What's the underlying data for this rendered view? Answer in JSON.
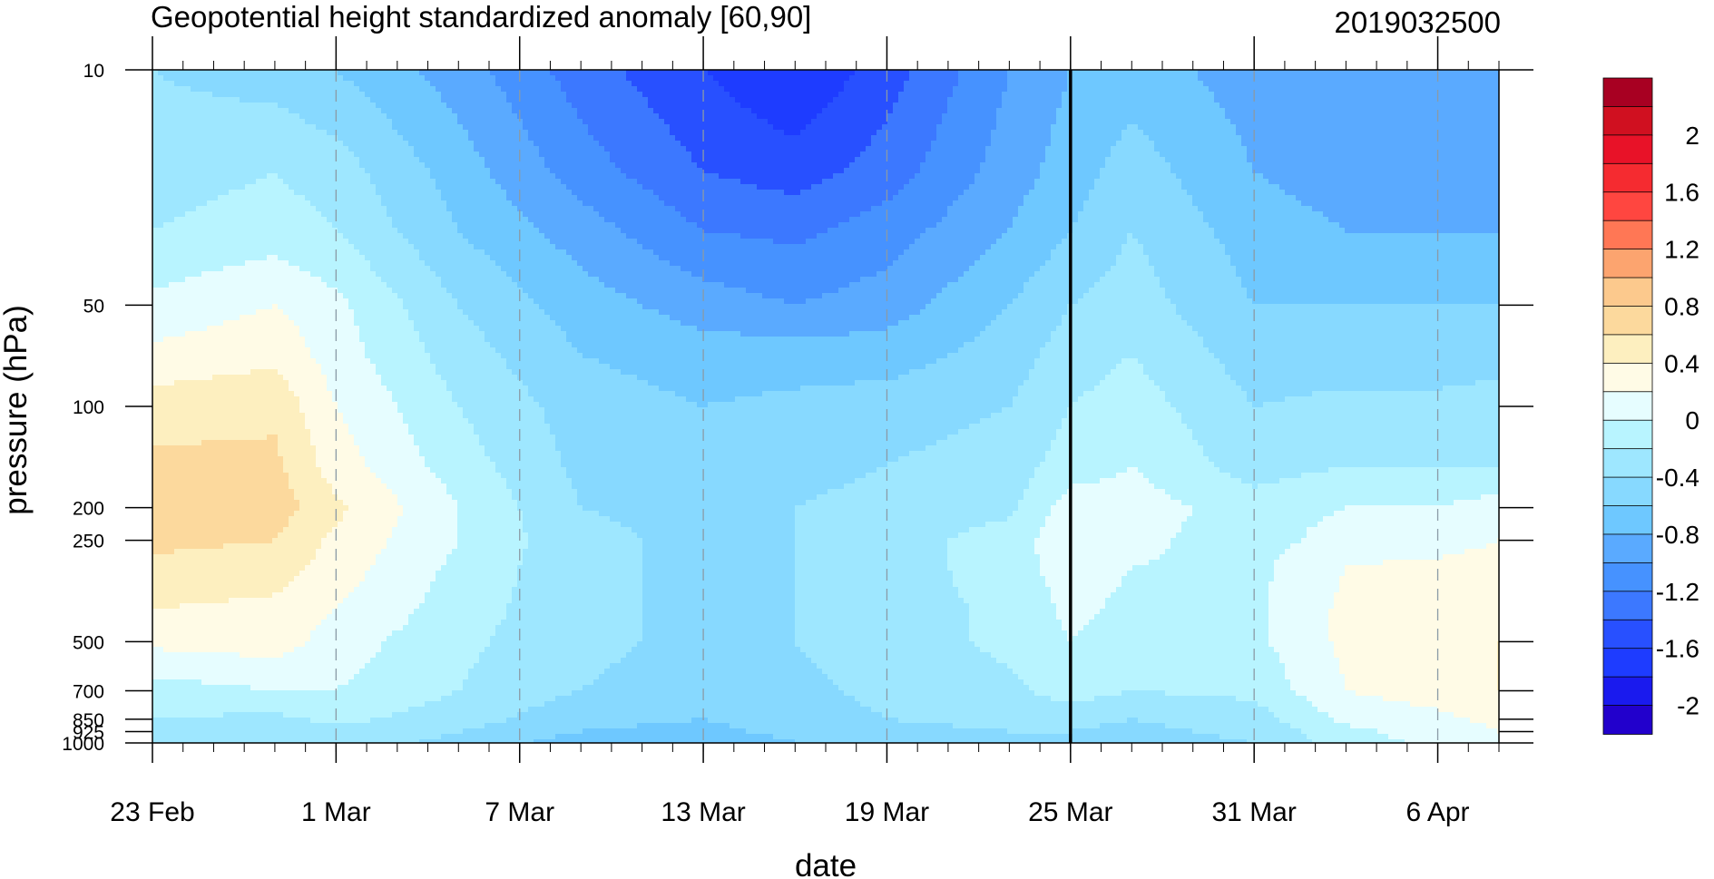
{
  "chart_data": {
    "type": "heatmap",
    "title": "Geopotential height standardized anomaly [60,90]",
    "right_title": "2019032500",
    "xlabel": "date",
    "ylabel": "pressure (hPa)",
    "x_ticks": [
      "23 Feb",
      "1 Mar",
      "7 Mar",
      "13 Mar",
      "19 Mar",
      "25 Mar",
      "31 Mar",
      "6 Apr"
    ],
    "x_range": [
      "2019-02-23",
      "2019-04-08"
    ],
    "current_date": "2019-03-25",
    "y_scale": "log",
    "y_ticks": [
      "10",
      "50",
      "100",
      "200",
      "250",
      "500",
      "700",
      "850",
      "925",
      "1000"
    ],
    "y_range": [
      1000,
      10
    ],
    "colorbar": {
      "levels": [
        -2.2,
        -2.0,
        -1.8,
        -1.6,
        -1.4,
        -1.2,
        -1.0,
        -0.8,
        -0.6,
        -0.4,
        -0.2,
        0,
        0.2,
        0.4,
        0.6,
        0.8,
        1.0,
        1.2,
        1.4,
        1.6,
        1.8,
        2.0,
        2.2
      ],
      "labels": [
        "2",
        "1.6",
        "1.2",
        "0.8",
        "0.4",
        "0",
        "-0.4",
        "-0.8",
        "-1.2",
        "-1.6",
        "-2"
      ],
      "colors": [
        "#2200cc",
        "#1a1aee",
        "#1e3cff",
        "#2850ff",
        "#3c78ff",
        "#4692ff",
        "#5aaaff",
        "#6ec8ff",
        "#87d9ff",
        "#9ee7ff",
        "#b8f4ff",
        "#e6fdff",
        "#fffbe6",
        "#fdefbf",
        "#fcd99d",
        "#fcc98d",
        "#fca46f",
        "#ff7755",
        "#ff4640",
        "#f52b30",
        "#e81228",
        "#d01020",
        "#a80022"
      ]
    },
    "anomaly_levels": [
      -1.8,
      -1.4,
      -1.0,
      -0.6,
      -0.2,
      0.2,
      0.6
    ],
    "anomaly_table": {
      "pressure_hPa": [
        10,
        20,
        30,
        50,
        70,
        100,
        150,
        200,
        250,
        300,
        400,
        500,
        700,
        850,
        925,
        1000
      ],
      "dates": [
        "2019-02-23",
        "2019-02-27",
        "2019-03-01",
        "2019-03-05",
        "2019-03-09",
        "2019-03-13",
        "2019-03-16",
        "2019-03-19",
        "2019-03-23",
        "2019-03-25",
        "2019-03-27",
        "2019-03-31",
        "2019-04-03",
        "2019-04-06",
        "2019-04-08"
      ],
      "values": [
        [
          -0.4,
          -0.5,
          -0.6,
          -0.9,
          -1.3,
          -1.6,
          -1.8,
          -1.5,
          -1.0,
          -0.8,
          -0.7,
          -0.9,
          -1.0,
          -1.0,
          -1.0
        ],
        [
          -0.3,
          -0.2,
          -0.3,
          -0.7,
          -1.1,
          -1.4,
          -1.5,
          -1.3,
          -0.9,
          -0.7,
          -0.5,
          -0.8,
          -0.9,
          -0.9,
          -0.9
        ],
        [
          -0.2,
          -0.1,
          -0.2,
          -0.6,
          -0.9,
          -1.2,
          -1.25,
          -1.1,
          -0.8,
          -0.6,
          -0.4,
          -0.7,
          -0.8,
          -0.8,
          -0.8
        ],
        [
          0.05,
          0.2,
          0.05,
          -0.4,
          -0.7,
          -0.9,
          -1.0,
          -0.9,
          -0.6,
          -0.4,
          -0.3,
          -0.6,
          -0.6,
          -0.6,
          -0.6
        ],
        [
          0.25,
          0.35,
          0.1,
          -0.3,
          -0.6,
          -0.7,
          -0.7,
          -0.7,
          -0.5,
          -0.3,
          -0.2,
          -0.5,
          -0.5,
          -0.5,
          -0.5
        ],
        [
          0.5,
          0.55,
          0.2,
          -0.2,
          -0.5,
          -0.6,
          -0.55,
          -0.5,
          -0.4,
          -0.2,
          -0.1,
          -0.4,
          -0.35,
          -0.35,
          -0.3
        ],
        [
          0.65,
          0.65,
          0.3,
          -0.1,
          -0.45,
          -0.5,
          -0.45,
          -0.4,
          -0.3,
          -0.1,
          0.0,
          -0.3,
          -0.2,
          -0.2,
          -0.2
        ],
        [
          0.7,
          0.7,
          0.45,
          0.0,
          -0.4,
          -0.45,
          -0.4,
          -0.35,
          -0.25,
          0.1,
          0.1,
          -0.1,
          0.0,
          0.0,
          0.1
        ],
        [
          0.65,
          0.6,
          0.35,
          0.0,
          -0.35,
          -0.45,
          -0.4,
          -0.3,
          -0.1,
          0.15,
          0.05,
          -0.1,
          0.1,
          0.1,
          0.2
        ],
        [
          0.55,
          0.5,
          0.3,
          -0.05,
          -0.35,
          -0.45,
          -0.4,
          -0.3,
          -0.1,
          0.1,
          0.0,
          -0.05,
          0.2,
          0.25,
          0.3
        ],
        [
          0.4,
          0.35,
          0.2,
          -0.1,
          -0.35,
          -0.45,
          -0.4,
          -0.3,
          -0.15,
          0.05,
          -0.05,
          -0.05,
          0.25,
          0.3,
          0.35
        ],
        [
          0.25,
          0.3,
          0.1,
          -0.15,
          -0.35,
          -0.45,
          -0.4,
          -0.3,
          -0.15,
          0.0,
          -0.1,
          -0.05,
          0.25,
          0.35,
          0.4
        ],
        [
          -0.1,
          0.0,
          0.0,
          -0.2,
          -0.4,
          -0.5,
          -0.45,
          -0.35,
          -0.25,
          -0.1,
          -0.2,
          -0.15,
          0.2,
          0.3,
          0.4
        ],
        [
          -0.2,
          -0.25,
          -0.15,
          -0.3,
          -0.55,
          -0.6,
          -0.5,
          -0.4,
          -0.35,
          -0.35,
          -0.4,
          -0.3,
          0.05,
          0.15,
          0.25
        ],
        [
          -0.3,
          -0.3,
          -0.25,
          -0.4,
          -0.6,
          -0.65,
          -0.55,
          -0.45,
          -0.4,
          -0.4,
          -0.45,
          -0.35,
          -0.05,
          0.1,
          0.2
        ],
        [
          -0.35,
          -0.35,
          -0.3,
          -0.45,
          -0.7,
          -0.75,
          -0.6,
          -0.5,
          -0.45,
          -0.45,
          -0.5,
          -0.4,
          -0.1,
          0.05,
          0.15
        ]
      ]
    }
  }
}
